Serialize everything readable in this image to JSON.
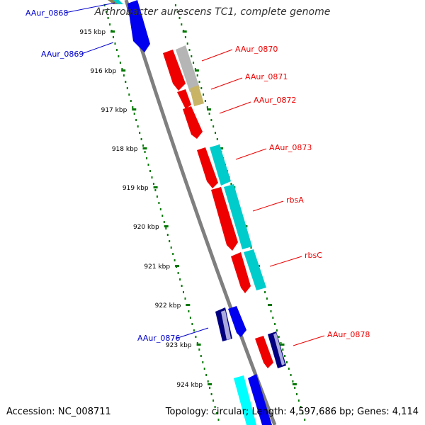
{
  "title": "Arthrobacter aurescens TC1, complete genome",
  "footer": {
    "accession_label": "Accession:",
    "accession": "NC_008711",
    "topology_label": "Topology:",
    "topology": "circular",
    "length_label": "Length:",
    "length": "4,597,686 bp",
    "genes_label": "Genes:",
    "genes": "4,114"
  },
  "ticks": [
    "915 kbp",
    "916 kbp",
    "917 kbp",
    "918 kbp",
    "919 kbp",
    "920 kbp",
    "921 kbp",
    "922 kbp",
    "923 kbp",
    "924 kbp"
  ],
  "genes": [
    {
      "id": "AAur_0868",
      "color": "#0000cc"
    },
    {
      "id": "AAur_0869",
      "color": "#0000cc"
    },
    {
      "id": "AAur_0870",
      "color": "#ee0000"
    },
    {
      "id": "AAur_0871",
      "color": "#ee0000"
    },
    {
      "id": "AAur_0872",
      "color": "#ee0000"
    },
    {
      "id": "AAur_0873",
      "color": "#ee0000"
    },
    {
      "id": "rbsA",
      "color": "#ee0000"
    },
    {
      "id": "rbsC",
      "color": "#ee0000"
    },
    {
      "id": "AAur_0876",
      "color": "#0000cc"
    },
    {
      "id": "AAur_0878",
      "color": "#ee0000"
    }
  ],
  "colors": {
    "backbone": "#888888",
    "tick": "#007700",
    "forward_gene": "#ee0000",
    "reverse_gene": "#0000ff",
    "cyan_feature": "#00cccc",
    "navy_feature": "#000080",
    "grey_feature": "#aaaaaa",
    "olive_feature": "#c8b464"
  }
}
